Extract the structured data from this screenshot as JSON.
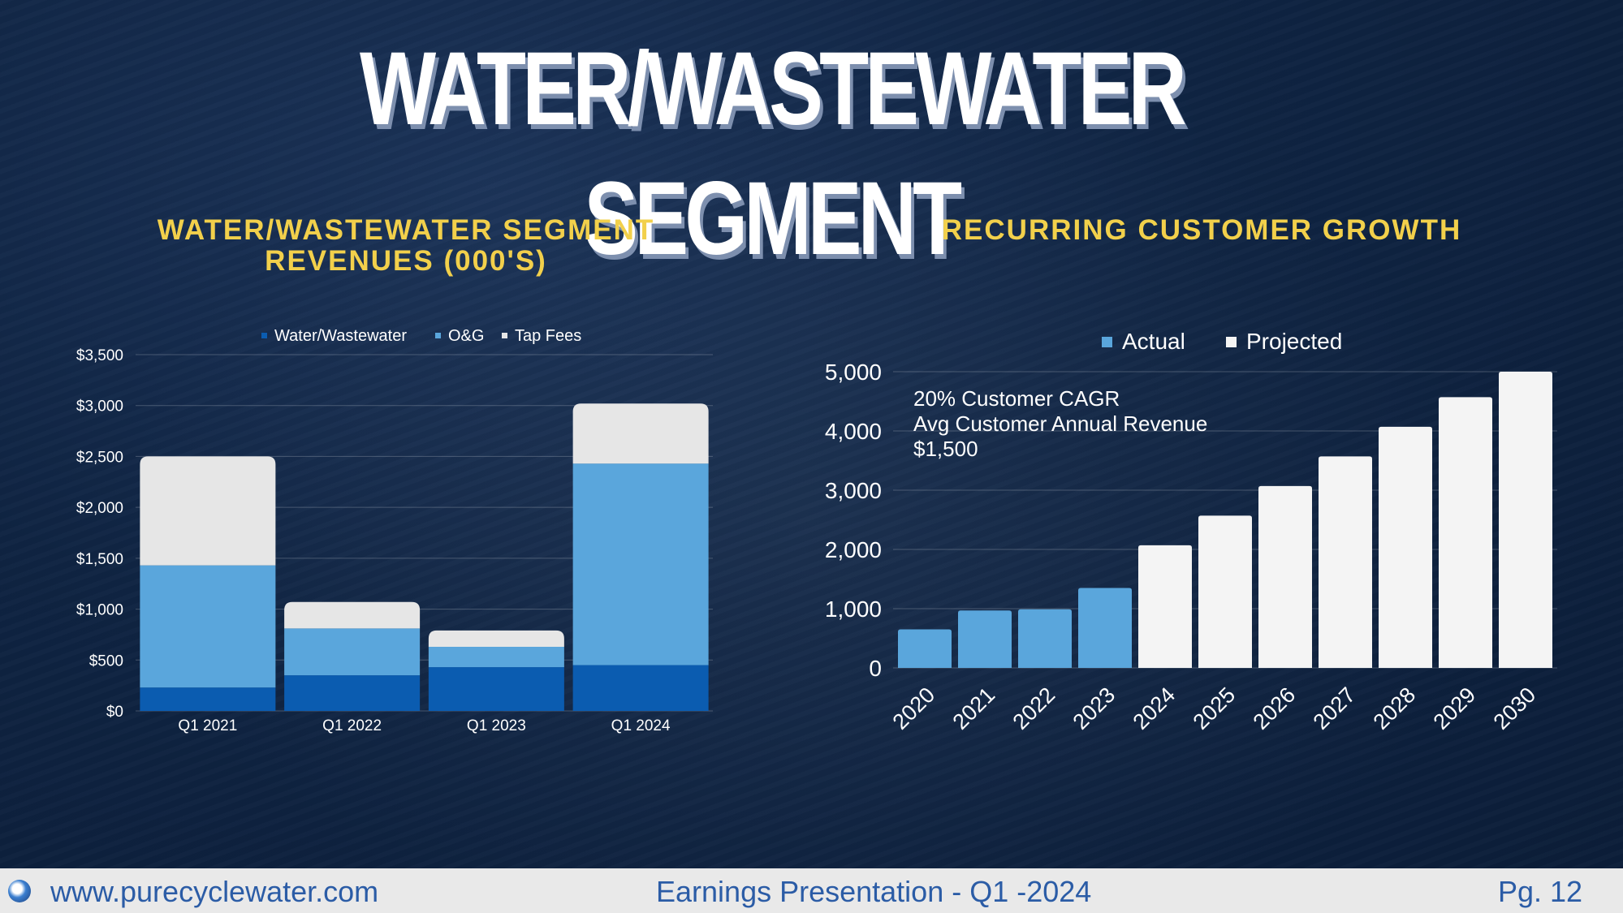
{
  "title": "WATER/WASTEWATER SEGMENT",
  "footer": {
    "url": "www.purecyclewater.com",
    "presentation": "Earnings Presentation - Q1 -2024",
    "page": "Pg. 12"
  },
  "chart_data": [
    {
      "type": "bar",
      "stacked": true,
      "title_line1": "WATER/WASTEWATER SEGMENT",
      "title_line2": "REVENUES (000'S)",
      "categories": [
        "Q1 2021",
        "Q1 2022",
        "Q1 2023",
        "Q1 2024"
      ],
      "series": [
        {
          "name": "Water/Wastewater",
          "color": "#0b5cb0",
          "values": [
            230,
            350,
            430,
            450
          ]
        },
        {
          "name": "O&G",
          "color": "#5aa6dc",
          "values": [
            1200,
            460,
            200,
            1980
          ]
        },
        {
          "name": "Tap Fees",
          "color": "#e6e6e6",
          "values": [
            1070,
            260,
            160,
            590
          ]
        }
      ],
      "ylim": [
        0,
        3500
      ],
      "yticks": [
        0,
        500,
        1000,
        1500,
        2000,
        2500,
        3000,
        3500
      ],
      "ytick_labels": [
        "$0",
        "$500",
        "$1,000",
        "$1,500",
        "$2,000",
        "$2,500",
        "$3,000",
        "$3,500"
      ],
      "legend": "top"
    },
    {
      "type": "bar",
      "title": "RECURRING CUSTOMER GROWTH",
      "categories": [
        "2020",
        "2021",
        "2022",
        "2023",
        "2024",
        "2025",
        "2026",
        "2027",
        "2028",
        "2029",
        "2030"
      ],
      "values": [
        650,
        970,
        990,
        1350,
        2070,
        2570,
        3070,
        3570,
        4070,
        4570,
        5000
      ],
      "status": [
        "Actual",
        "Actual",
        "Actual",
        "Actual",
        "Projected",
        "Projected",
        "Projected",
        "Projected",
        "Projected",
        "Projected",
        "Projected"
      ],
      "series": [
        {
          "name": "Actual",
          "color": "#5aa6dc"
        },
        {
          "name": "Projected",
          "color": "#f4f4f4"
        }
      ],
      "ylim": [
        0,
        5000
      ],
      "yticks": [
        0,
        1000,
        2000,
        3000,
        4000,
        5000
      ],
      "ytick_labels": [
        "0",
        "1,000",
        "2,000",
        "3,000",
        "4,000",
        "5,000"
      ],
      "annotation": [
        "20% Customer CAGR",
        "Avg Customer Annual Revenue",
        "$1,500"
      ],
      "legend": "top"
    }
  ]
}
